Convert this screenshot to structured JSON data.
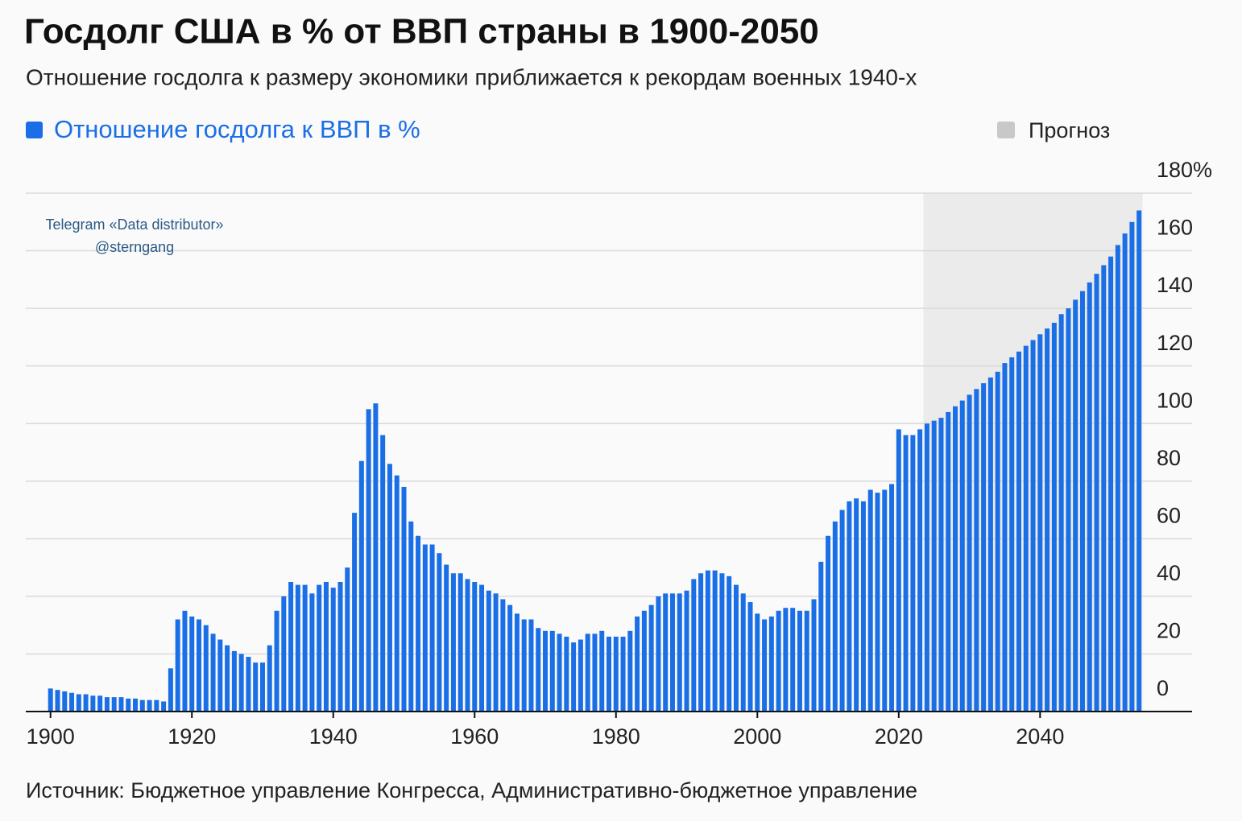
{
  "chart_data": {
    "type": "bar",
    "title": "Госдолг США в % от ВВП страны в 1900-2050",
    "subtitle": "Отношение госдолга к размеру экономики приближается к рекордам военных 1940-х",
    "source": "Источник: Бюджетное управление Конгресса, Административно-бюджетное управление",
    "watermark": [
      "Telegram «Data distributor»",
      "@sterngang"
    ],
    "x": [
      1900,
      1901,
      1902,
      1903,
      1904,
      1905,
      1906,
      1907,
      1908,
      1909,
      1910,
      1911,
      1912,
      1913,
      1914,
      1915,
      1916,
      1917,
      1918,
      1919,
      1920,
      1921,
      1922,
      1923,
      1924,
      1925,
      1926,
      1927,
      1928,
      1929,
      1930,
      1931,
      1932,
      1933,
      1934,
      1935,
      1936,
      1937,
      1938,
      1939,
      1940,
      1941,
      1942,
      1943,
      1944,
      1945,
      1946,
      1947,
      1948,
      1949,
      1950,
      1951,
      1952,
      1953,
      1954,
      1955,
      1956,
      1957,
      1958,
      1959,
      1960,
      1961,
      1962,
      1963,
      1964,
      1965,
      1966,
      1967,
      1968,
      1969,
      1970,
      1971,
      1972,
      1973,
      1974,
      1975,
      1976,
      1977,
      1978,
      1979,
      1980,
      1981,
      1982,
      1983,
      1984,
      1985,
      1986,
      1987,
      1988,
      1989,
      1990,
      1991,
      1992,
      1993,
      1994,
      1995,
      1996,
      1997,
      1998,
      1999,
      2000,
      2001,
      2002,
      2003,
      2004,
      2005,
      2006,
      2007,
      2008,
      2009,
      2010,
      2011,
      2012,
      2013,
      2014,
      2015,
      2016,
      2017,
      2018,
      2019,
      2020,
      2021,
      2022,
      2023,
      2024,
      2025,
      2026,
      2027,
      2028,
      2029,
      2030,
      2031,
      2032,
      2033,
      2034,
      2035,
      2036,
      2037,
      2038,
      2039,
      2040,
      2041,
      2042,
      2043,
      2044,
      2045,
      2046,
      2047,
      2048,
      2049,
      2050,
      2051,
      2052,
      2053,
      2054
    ],
    "series": [
      {
        "name": "Отношение госдолга к ВВП в %",
        "color": "#1b6fe6",
        "values": [
          8,
          7.5,
          7,
          6.5,
          6,
          6,
          5.5,
          5.5,
          5,
          5,
          5,
          4.5,
          4.5,
          4,
          4,
          4,
          3.5,
          15,
          32,
          35,
          33,
          32,
          30,
          27,
          25,
          23,
          21,
          20,
          19,
          17,
          17,
          23,
          35,
          40,
          45,
          44,
          44,
          41,
          44,
          45,
          43,
          45,
          50,
          69,
          87,
          105,
          107,
          96,
          86,
          82,
          78,
          66,
          61,
          58,
          58,
          55,
          51,
          48,
          48,
          46,
          45,
          44,
          42,
          41,
          39,
          37,
          34,
          32,
          32,
          29,
          28,
          28,
          27,
          26,
          24,
          25,
          27,
          27,
          28,
          26,
          26,
          26,
          28,
          33,
          35,
          37,
          40,
          41,
          41,
          41,
          42,
          46,
          48,
          49,
          49,
          48,
          47,
          44,
          41,
          38,
          34,
          32,
          33,
          35,
          36,
          36,
          35,
          35,
          39,
          52,
          61,
          66,
          70,
          73,
          74,
          73,
          77,
          76,
          77,
          79,
          98,
          96,
          96,
          98,
          100,
          101,
          102,
          104,
          106,
          108,
          110,
          112,
          114,
          116,
          118,
          121,
          123,
          125,
          127,
          129,
          131,
          133,
          135,
          138,
          140,
          143,
          146,
          149,
          152,
          155,
          158,
          162,
          166,
          170,
          174
        ]
      }
    ],
    "forecast": {
      "label": "Прогноз",
      "range": [
        2023.5,
        2054.5
      ],
      "color": "#ebebeb"
    },
    "xlim": [
      1896.5,
      2061.5
    ],
    "xticks": [
      1900,
      1920,
      1940,
      1960,
      1980,
      2000,
      2020,
      2040
    ],
    "ylim": [
      0,
      180
    ],
    "yticks": [
      0,
      20,
      40,
      60,
      80,
      100,
      120,
      140,
      160,
      {
        "value": 180,
        "label": "180%"
      }
    ],
    "grid": true
  }
}
